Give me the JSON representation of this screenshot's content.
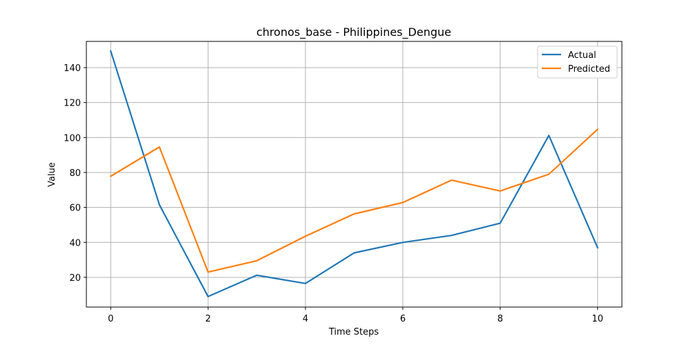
{
  "chart_data": {
    "type": "line",
    "title": "chronos_base - Philippines_Dengue",
    "xlabel": "Time Steps",
    "ylabel": "Value",
    "x": [
      0,
      1,
      2,
      3,
      4,
      5,
      6,
      7,
      8,
      9,
      10
    ],
    "xlim": [
      -0.5,
      10.5
    ],
    "ylim": [
      3,
      155
    ],
    "xticks": [
      0,
      2,
      4,
      6,
      8,
      10
    ],
    "yticks": [
      20,
      40,
      60,
      80,
      100,
      120,
      140
    ],
    "grid": true,
    "legend_position": "top-right",
    "series": [
      {
        "name": "Actual",
        "color": "#1f77b4",
        "values": [
          149.5,
          61.5,
          9,
          21.2,
          16.5,
          34,
          40,
          44,
          51,
          101.2,
          37
        ]
      },
      {
        "name": "Predicted",
        "color": "#ff7f0e",
        "values": [
          77.8,
          94.6,
          23,
          29.5,
          43.5,
          56.3,
          62.8,
          75.6,
          69.4,
          79,
          104.7
        ]
      }
    ]
  }
}
